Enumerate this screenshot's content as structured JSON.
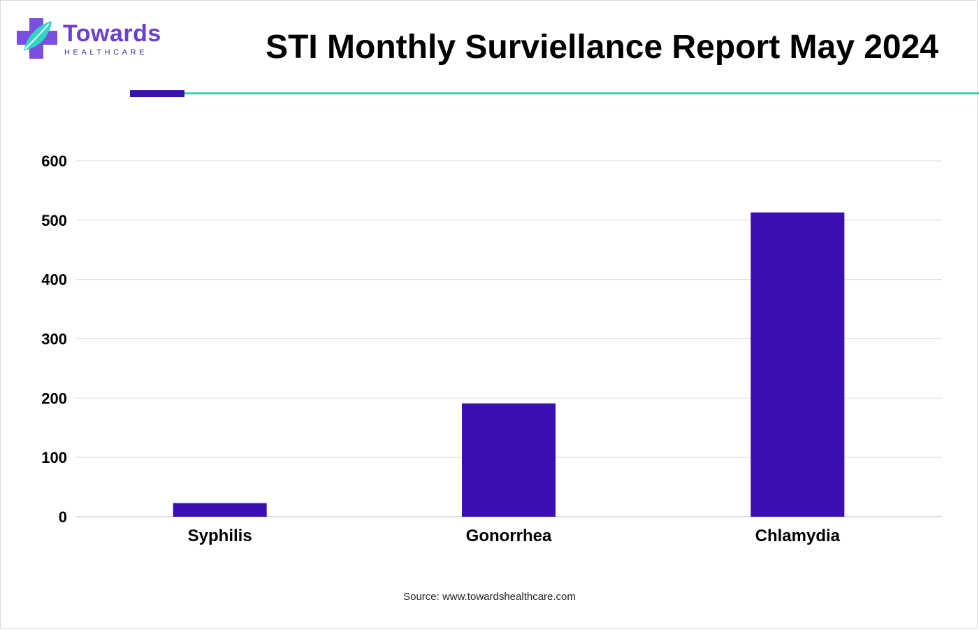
{
  "header": {
    "logo_name": "Towards",
    "logo_sub": "HEALTHCARE",
    "title": "STI Monthly Surviellance Report May 2024"
  },
  "colors": {
    "bar": "#3a10b5",
    "accent_purple": "#3a10b5",
    "accent_teal": "#3cd6a6",
    "logo_purple": "#6a3fd1",
    "grid": "#d9d9d9"
  },
  "chart_data": {
    "type": "bar",
    "categories": [
      "Syphilis",
      "Gonorrhea",
      "Chlamydia"
    ],
    "values": [
      23,
      191,
      513
    ],
    "ylim": [
      0,
      600
    ],
    "yticks": [
      0,
      100,
      200,
      300,
      400,
      500,
      600
    ],
    "grid": true,
    "legend": "none"
  },
  "footer": {
    "source": "Source: www.towardshealthcare.com"
  }
}
